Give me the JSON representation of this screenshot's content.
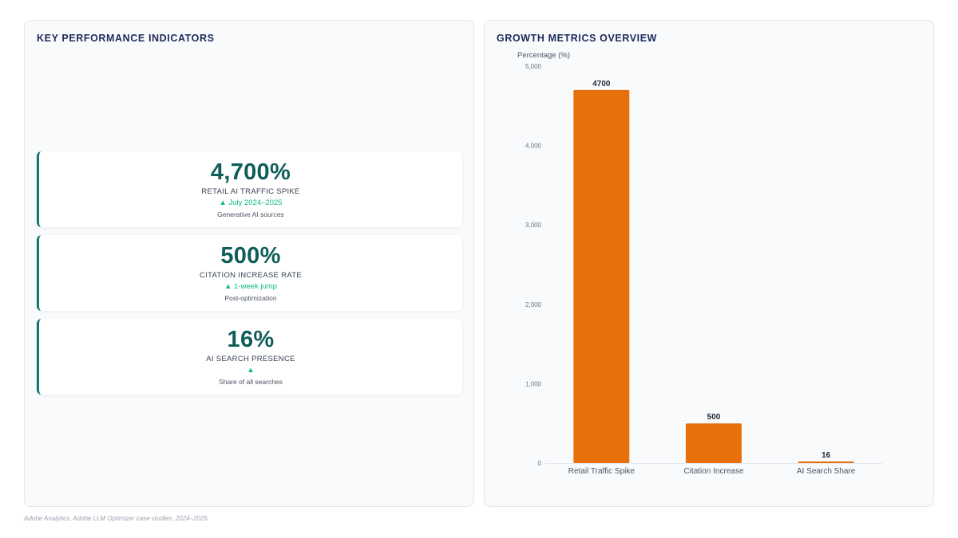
{
  "kpi_panel": {
    "title": "KEY PERFORMANCE INDICATORS",
    "cards": [
      {
        "value": "4,700%",
        "label": "RETAIL AI TRAFFIC SPIKE",
        "trend": "▲ July 2024–2025",
        "sub": "Generative AI sources"
      },
      {
        "value": "500%",
        "label": "CITATION INCREASE RATE",
        "trend": "▲ 1-week jump",
        "sub": "Post-optimization"
      },
      {
        "value": "16%",
        "label": "AI SEARCH PRESENCE",
        "trend": "▲",
        "sub": "Share of all searches"
      }
    ]
  },
  "chart_panel": {
    "title": "GROWTH METRICS OVERVIEW"
  },
  "chart_data": {
    "type": "bar",
    "title": "GROWTH METRICS OVERVIEW",
    "ylabel": "Percentage (%)",
    "xlabel": "",
    "categories": [
      "Retail Traffic Spike",
      "Citation Increase",
      "AI Search Share"
    ],
    "values": [
      4700,
      500,
      16
    ],
    "data_labels": [
      "4700",
      "500",
      "16"
    ],
    "ylim": [
      0,
      5000
    ],
    "yticks": [
      0,
      1000,
      2000,
      3000,
      4000,
      5000
    ],
    "ytick_labels": [
      "0",
      "1,000",
      "2,000",
      "3,000",
      "4,000",
      "5,000"
    ],
    "bar_color": "#e8700a",
    "grid": false,
    "legend": "none"
  },
  "footer": {
    "source": "Adobe Analytics, Adobe LLM Optimizer case studies, 2024–2025"
  },
  "colors": {
    "accent": "#0f766e",
    "value_text": "#0f5e5a",
    "trend": "#10b981",
    "title": "#1e2a5a",
    "bar": "#e8700a"
  }
}
